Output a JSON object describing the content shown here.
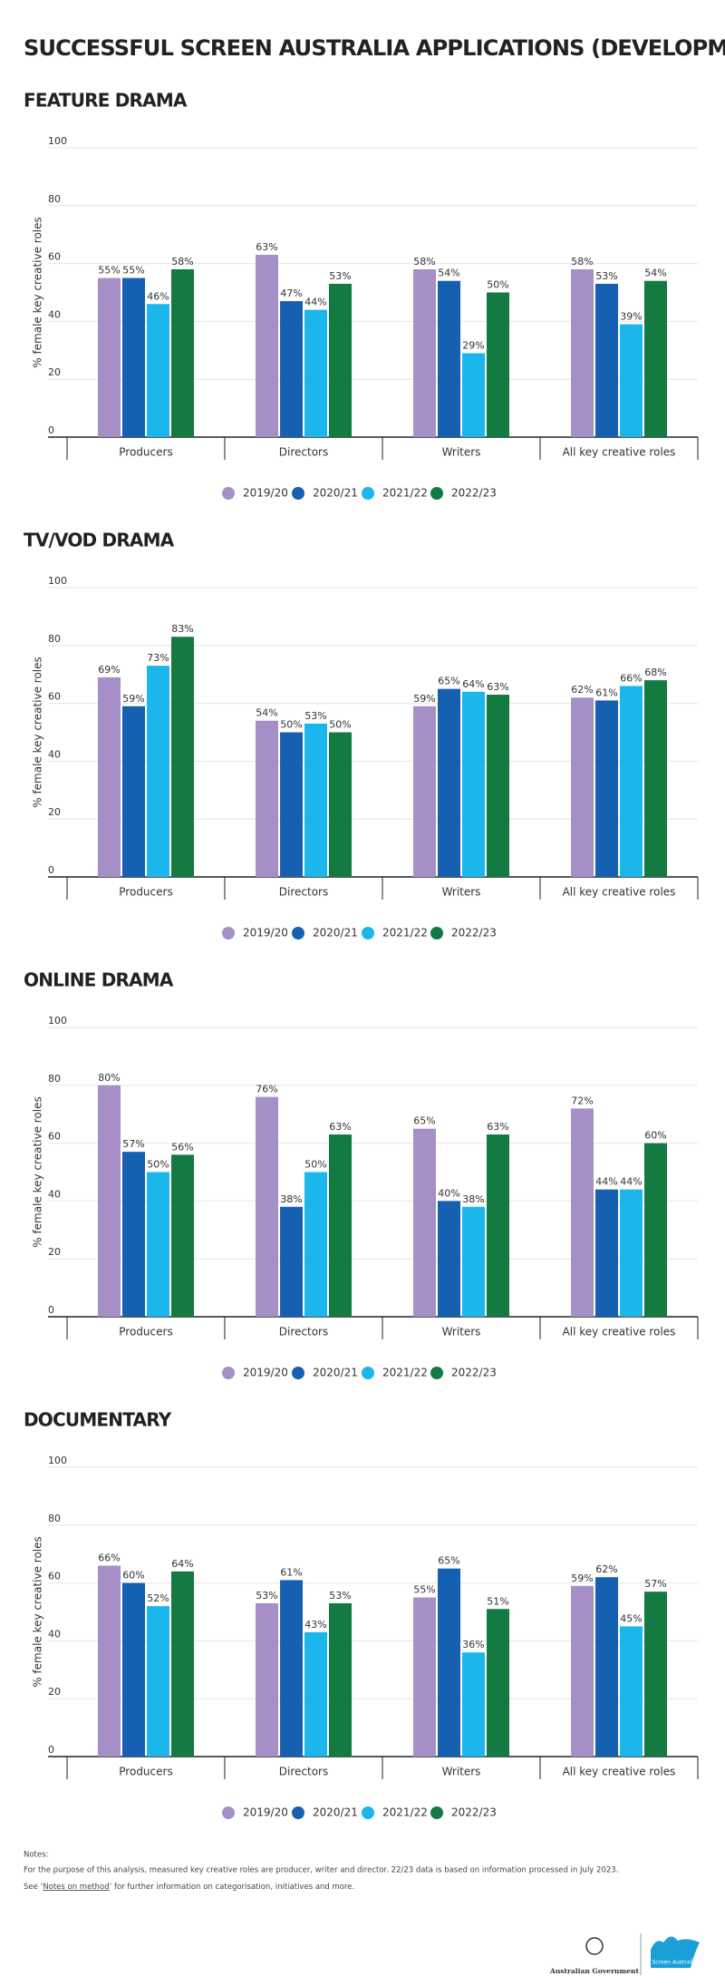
{
  "title": "SUCCESSFUL SCREEN AUSTRALIA APPLICATIONS (DEVELOPMENT ONLY)",
  "chart_data": [
    {
      "type": "bar",
      "title": "FEATURE DRAMA",
      "y_label": "% female key creative roles",
      "categories": [
        "Producers",
        "Directors",
        "Writers",
        "All key creative roles"
      ],
      "ylim": [
        0,
        100
      ],
      "yticks": [
        0,
        20,
        40,
        60,
        80,
        100
      ],
      "grid": true,
      "series": [
        {
          "name": "2019/20",
          "color": "#a68fc7",
          "values": [
            55,
            63,
            58,
            58
          ],
          "value_labels": [
            "55%",
            "63%",
            "58%",
            "58%"
          ]
        },
        {
          "name": "2020/21",
          "color": "#1560b0",
          "values": [
            55,
            47,
            54,
            53
          ],
          "value_labels": [
            "55%",
            "47%",
            "54%",
            "53%"
          ]
        },
        {
          "name": "2021/22",
          "color": "#1ab6ec",
          "values": [
            46,
            44,
            29,
            39
          ],
          "value_labels": [
            "46%",
            "44%",
            "29%",
            "39%"
          ]
        },
        {
          "name": "2022/23",
          "color": "#137a41",
          "values": [
            58,
            53,
            50,
            54
          ],
          "value_labels": [
            "58%",
            "53%",
            "50%",
            "54%"
          ]
        }
      ]
    },
    {
      "type": "bar",
      "title": "TV/VOD DRAMA",
      "y_label": "% female key creative roles",
      "categories": [
        "Producers",
        "Directors",
        "Writers",
        "All key creative roles"
      ],
      "ylim": [
        0,
        100
      ],
      "yticks": [
        0,
        20,
        40,
        60,
        80,
        100
      ],
      "grid": true,
      "series": [
        {
          "name": "2019/20",
          "color": "#a68fc7",
          "values": [
            69,
            54,
            59,
            62
          ],
          "value_labels": [
            "69%",
            "54%",
            "59%",
            "62%"
          ]
        },
        {
          "name": "2020/21",
          "color": "#1560b0",
          "values": [
            59,
            50,
            65,
            61
          ],
          "value_labels": [
            "59%",
            "50%",
            "65%",
            "61%"
          ]
        },
        {
          "name": "2021/22",
          "color": "#1ab6ec",
          "values": [
            73,
            53,
            64,
            66
          ],
          "value_labels": [
            "73%",
            "53%",
            "64%",
            "66%"
          ]
        },
        {
          "name": "2022/23",
          "color": "#137a41",
          "values": [
            83,
            50,
            63,
            68
          ],
          "value_labels": [
            "83%",
            "50%",
            "63%",
            "68%"
          ]
        }
      ]
    },
    {
      "type": "bar",
      "title": "ONLINE DRAMA",
      "y_label": "% female key creative roles",
      "categories": [
        "Producers",
        "Directors",
        "Writers",
        "All key creative roles"
      ],
      "ylim": [
        0,
        100
      ],
      "yticks": [
        0,
        20,
        40,
        60,
        80,
        100
      ],
      "grid": true,
      "series": [
        {
          "name": "2019/20",
          "color": "#a68fc7",
          "values": [
            80,
            76,
            65,
            72
          ],
          "value_labels": [
            "80%",
            "76%",
            "65%",
            "72%"
          ]
        },
        {
          "name": "2020/21",
          "color": "#1560b0",
          "values": [
            57,
            38,
            40,
            44
          ],
          "value_labels": [
            "57%",
            "38%",
            "40%",
            "44%"
          ]
        },
        {
          "name": "2021/22",
          "color": "#1ab6ec",
          "values": [
            50,
            50,
            38,
            44
          ],
          "value_labels": [
            "50%",
            "50%",
            "38%",
            "44%"
          ]
        },
        {
          "name": "2022/23",
          "color": "#137a41",
          "values": [
            56,
            63,
            63,
            60
          ],
          "value_labels": [
            "56%",
            "63%",
            "63%",
            "60%"
          ]
        }
      ]
    },
    {
      "type": "bar",
      "title": "DOCUMENTARY",
      "y_label": "% female key creative roles",
      "categories": [
        "Producers",
        "Directors",
        "Writers",
        "All key creative roles"
      ],
      "ylim": [
        0,
        100
      ],
      "yticks": [
        0,
        20,
        40,
        60,
        80,
        100
      ],
      "grid": true,
      "series": [
        {
          "name": "2019/20",
          "color": "#a68fc7",
          "values": [
            66,
            53,
            55,
            59
          ],
          "value_labels": [
            "66%",
            "53%",
            "55%",
            "59%"
          ]
        },
        {
          "name": "2020/21",
          "color": "#1560b0",
          "values": [
            60,
            61,
            65,
            62
          ],
          "value_labels": [
            "60%",
            "61%",
            "65%",
            "62%"
          ]
        },
        {
          "name": "2021/22",
          "color": "#1ab6ec",
          "values": [
            52,
            43,
            36,
            45
          ],
          "value_labels": [
            "52%",
            "43%",
            "36%",
            "45%"
          ]
        },
        {
          "name": "2022/23",
          "color": "#137a41",
          "values": [
            64,
            53,
            51,
            57
          ],
          "value_labels": [
            "64%",
            "53%",
            "51%",
            "57%"
          ]
        }
      ]
    }
  ],
  "notes": {
    "heading": "Notes:",
    "line1": "For the purpose of this analysis, measured key creative roles are producer, writer and director. 22/23 data is based on information processed in July 2023.",
    "line2_before": "See ‘",
    "line2_link": "Notes on method",
    "line2_after": "’ for further information on categorisation, initiatives and more."
  },
  "logos": {
    "government": "Australian Government",
    "screen": "Screen Australia"
  }
}
